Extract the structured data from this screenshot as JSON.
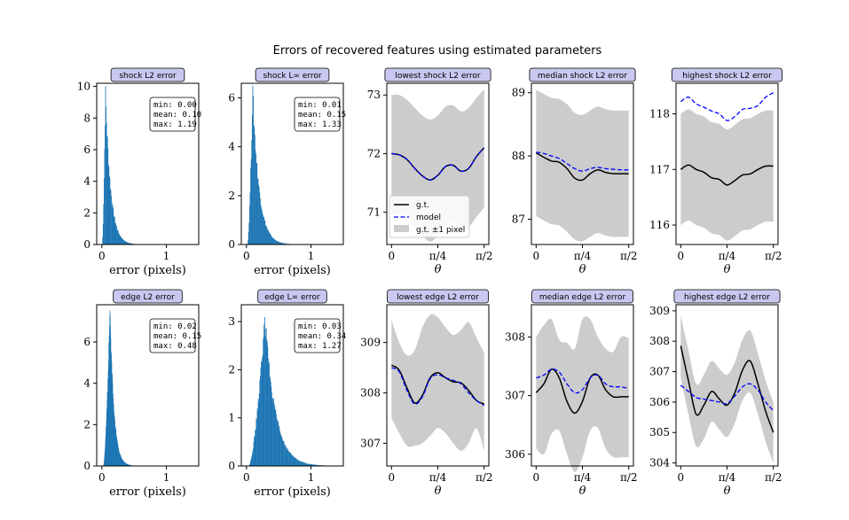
{
  "figure": {
    "title": "Errors of recovered features using estimated parameters"
  },
  "colors": {
    "hist": "#1f77b4",
    "gt": "#000000",
    "model": "#0000ff",
    "band": "#cccccc",
    "title_box": "#c8c8f0"
  },
  "legend": {
    "gt": "g.t.",
    "model": "model",
    "band": "g.t. ±1 pixel"
  },
  "chart_data": [
    {
      "type": "histogram",
      "title": "shock L2 error",
      "xlabel": "error (pixels)",
      "xlim": [
        -0.08,
        1.5
      ],
      "ylim": [
        0,
        10.2
      ],
      "xticks": [
        0,
        1
      ],
      "yticks": [
        0,
        2,
        4,
        6,
        8,
        10
      ],
      "peak": 9.7,
      "peak_x": 0.05,
      "tail": 0.08,
      "support": [
        0,
        1.19
      ],
      "stats": {
        "min": "min: 0.00",
        "mean": "mean: 0.10",
        "max": "max: 1.19"
      }
    },
    {
      "type": "histogram",
      "title": "shock L∞ error",
      "xlabel": "error (pixels)",
      "xlim": [
        -0.08,
        1.5
      ],
      "ylim": [
        0,
        6.6
      ],
      "xticks": [
        0,
        1
      ],
      "yticks": [
        0,
        2,
        4,
        6
      ],
      "peak": 6.3,
      "peak_x": 0.09,
      "tail": 0.1,
      "support": [
        0.01,
        1.33
      ],
      "stats": {
        "min": "min: 0.01",
        "mean": "mean: 0.15",
        "max": "max: 1.33"
      }
    },
    {
      "type": "line",
      "title": "lowest shock L2 error",
      "xlabel": "θ",
      "xlim": [
        -0.08,
        1.65
      ],
      "ylim": [
        70.45,
        73.2
      ],
      "yticks": [
        71,
        72,
        73
      ],
      "xticks": [
        "0",
        "π/4",
        "π/2"
      ],
      "legend": true,
      "theta": [
        0,
        0.1309,
        0.2618,
        0.3927,
        0.5236,
        0.6545,
        0.7854,
        0.9163,
        1.0472,
        1.1781,
        1.309,
        1.4399,
        1.5708
      ],
      "gt": [
        72.0,
        71.98,
        71.9,
        71.75,
        71.62,
        71.55,
        71.63,
        71.78,
        71.8,
        71.7,
        71.75,
        71.95,
        72.1
      ],
      "model": [
        72.0,
        71.98,
        71.9,
        71.75,
        71.62,
        71.55,
        71.63,
        71.78,
        71.8,
        71.7,
        71.75,
        71.95,
        72.1
      ],
      "band_lo": [
        70.95,
        70.97,
        70.9,
        70.75,
        70.6,
        70.5,
        70.6,
        70.78,
        70.82,
        70.7,
        70.75,
        70.92,
        71.08
      ],
      "band_hi": [
        73.0,
        73.0,
        72.92,
        72.78,
        72.65,
        72.58,
        72.65,
        72.8,
        72.82,
        72.72,
        72.78,
        72.95,
        73.1
      ]
    },
    {
      "type": "line",
      "title": "median shock L2 error",
      "xlabel": "θ",
      "xlim": [
        -0.08,
        1.65
      ],
      "ylim": [
        86.6,
        89.15
      ],
      "yticks": [
        87,
        88,
        89
      ],
      "xticks": [
        "0",
        "π/4",
        "π/2"
      ],
      "theta": [
        0,
        0.1309,
        0.2618,
        0.3927,
        0.5236,
        0.6545,
        0.7854,
        0.9163,
        1.0472,
        1.1781,
        1.309,
        1.4399,
        1.5708
      ],
      "gt": [
        88.05,
        87.98,
        87.92,
        87.9,
        87.8,
        87.65,
        87.62,
        87.72,
        87.78,
        87.74,
        87.72,
        87.72,
        87.72
      ],
      "model": [
        88.06,
        88.04,
        88.0,
        87.96,
        87.88,
        87.8,
        87.76,
        87.8,
        87.82,
        87.8,
        87.79,
        87.78,
        87.78
      ],
      "band_lo": [
        87.05,
        86.98,
        86.92,
        86.9,
        86.8,
        86.68,
        86.65,
        86.72,
        86.78,
        86.74,
        86.72,
        86.72,
        86.72
      ],
      "band_hi": [
        89.05,
        88.98,
        88.92,
        88.9,
        88.82,
        88.68,
        88.65,
        88.72,
        88.78,
        88.74,
        88.72,
        88.72,
        88.72
      ]
    },
    {
      "type": "line",
      "title": "highest shock L2 error",
      "xlabel": "θ",
      "xlim": [
        -0.08,
        1.65
      ],
      "ylim": [
        115.65,
        118.55
      ],
      "yticks": [
        116,
        117,
        118
      ],
      "xticks": [
        "0",
        "π/4",
        "π/2"
      ],
      "theta": [
        0,
        0.1309,
        0.2618,
        0.3927,
        0.5236,
        0.6545,
        0.7854,
        0.9163,
        1.0472,
        1.1781,
        1.309,
        1.4399,
        1.5708
      ],
      "gt": [
        117.0,
        117.08,
        117.0,
        116.95,
        116.85,
        116.82,
        116.72,
        116.8,
        116.9,
        116.92,
        117.0,
        117.06,
        117.06
      ],
      "model": [
        118.22,
        118.3,
        118.18,
        118.12,
        118.05,
        118.0,
        117.88,
        117.95,
        118.08,
        118.1,
        118.15,
        118.3,
        118.38
      ],
      "band_lo": [
        116.0,
        116.08,
        116.0,
        115.95,
        115.85,
        115.82,
        115.72,
        115.8,
        115.9,
        115.92,
        116.0,
        116.06,
        116.06
      ],
      "band_hi": [
        118.0,
        118.08,
        118.0,
        117.95,
        117.85,
        117.82,
        117.72,
        117.8,
        117.9,
        117.92,
        118.0,
        118.06,
        118.06
      ]
    },
    {
      "type": "histogram",
      "title": "edge L2 error",
      "xlabel": "error (pixels)",
      "xlim": [
        -0.08,
        1.5
      ],
      "ylim": [
        0,
        7.8
      ],
      "xticks": [
        0,
        1
      ],
      "yticks": [
        0,
        2,
        4,
        6
      ],
      "peak": 7.5,
      "peak_x": 0.12,
      "tail": 0.06,
      "support": [
        0.02,
        0.48
      ],
      "stats": {
        "min": "min: 0.02",
        "mean": "mean: 0.15",
        "max": "max: 0.48"
      }
    },
    {
      "type": "histogram",
      "title": "edge L∞ error",
      "xlabel": "error (pixels)",
      "xlim": [
        -0.08,
        1.5
      ],
      "ylim": [
        0,
        3.35
      ],
      "xticks": [
        0,
        1
      ],
      "yticks": [
        0,
        1,
        2,
        3
      ],
      "peak": 3.1,
      "peak_x": 0.28,
      "tail": 0.16,
      "support": [
        0.03,
        1.27
      ],
      "stats": {
        "min": "min: 0.03",
        "mean": "mean: 0.34",
        "max": "max: 1.27"
      }
    },
    {
      "type": "line",
      "title": "lowest edge L2 error",
      "xlabel": "θ",
      "xlim": [
        -0.08,
        1.65
      ],
      "ylim": [
        306.55,
        309.75
      ],
      "yticks": [
        307,
        308,
        309
      ],
      "xticks": [
        "0",
        "π/4",
        "π/2"
      ],
      "theta": [
        0,
        0.1309,
        0.2618,
        0.3927,
        0.5236,
        0.6545,
        0.7854,
        0.9163,
        1.0472,
        1.1781,
        1.309,
        1.4399,
        1.5708
      ],
      "gt": [
        308.55,
        308.45,
        308.1,
        307.8,
        307.95,
        308.3,
        308.4,
        308.3,
        308.22,
        308.2,
        308.05,
        307.85,
        307.78
      ],
      "model": [
        308.5,
        308.42,
        308.05,
        307.78,
        307.92,
        308.28,
        308.36,
        308.3,
        308.25,
        308.18,
        308.0,
        307.85,
        307.75
      ],
      "band_lo": [
        307.5,
        307.2,
        306.95,
        306.95,
        307.0,
        307.15,
        307.3,
        307.2,
        307.0,
        306.85,
        307.0,
        307.3,
        306.85
      ],
      "band_hi": [
        309.45,
        309.0,
        308.75,
        308.85,
        309.3,
        309.55,
        309.5,
        309.3,
        309.15,
        309.25,
        309.4,
        309.1,
        308.8
      ]
    },
    {
      "type": "line",
      "title": "median edge L2 error",
      "xlabel": "θ",
      "xlim": [
        -0.08,
        1.65
      ],
      "ylim": [
        305.8,
        308.55
      ],
      "yticks": [
        306,
        307,
        308
      ],
      "xticks": [
        "0",
        "π/4",
        "π/2"
      ],
      "theta": [
        0,
        0.1309,
        0.2618,
        0.3927,
        0.5236,
        0.6545,
        0.7854,
        0.9163,
        1.0472,
        1.1781,
        1.309,
        1.4399,
        1.5708
      ],
      "gt": [
        307.05,
        307.2,
        307.45,
        307.3,
        306.9,
        306.7,
        306.9,
        307.3,
        307.35,
        307.1,
        306.98,
        306.98,
        306.98
      ],
      "model": [
        307.3,
        307.35,
        307.45,
        307.4,
        307.2,
        307.05,
        307.1,
        307.3,
        307.35,
        307.2,
        307.15,
        307.15,
        307.12
      ],
      "band_lo": [
        306.1,
        306.0,
        306.35,
        306.4,
        306.0,
        305.7,
        305.95,
        306.4,
        306.45,
        306.1,
        305.95,
        305.95,
        305.95
      ],
      "band_hi": [
        308.0,
        308.2,
        308.3,
        307.95,
        307.9,
        307.8,
        308.3,
        308.3,
        308.0,
        307.8,
        307.75,
        308.0,
        307.98
      ]
    },
    {
      "type": "line",
      "title": "highest edge L2 error",
      "xlabel": "θ",
      "xlim": [
        -0.08,
        1.65
      ],
      "ylim": [
        303.9,
        309.2
      ],
      "yticks": [
        304,
        305,
        306,
        307,
        308,
        309
      ],
      "xticks": [
        "0",
        "π/4",
        "π/2"
      ],
      "theta": [
        0,
        0.1309,
        0.2618,
        0.3927,
        0.5236,
        0.6545,
        0.7854,
        0.9163,
        1.0472,
        1.1781,
        1.309,
        1.4399,
        1.5708
      ],
      "gt": [
        307.85,
        306.7,
        305.6,
        305.9,
        306.35,
        306.1,
        305.9,
        306.3,
        307.05,
        307.35,
        306.6,
        305.7,
        305.0
      ],
      "model": [
        306.55,
        306.35,
        306.15,
        306.1,
        306.05,
        306.0,
        305.95,
        306.2,
        306.5,
        306.6,
        306.4,
        306.0,
        305.72
      ],
      "band_lo": [
        306.8,
        305.6,
        304.55,
        304.8,
        305.35,
        305.1,
        304.85,
        305.3,
        306.05,
        306.3,
        305.6,
        304.7,
        304.0
      ],
      "band_hi": [
        308.85,
        307.7,
        306.6,
        306.9,
        307.35,
        307.1,
        306.9,
        307.3,
        308.05,
        308.35,
        307.6,
        306.7,
        306.0
      ]
    }
  ]
}
